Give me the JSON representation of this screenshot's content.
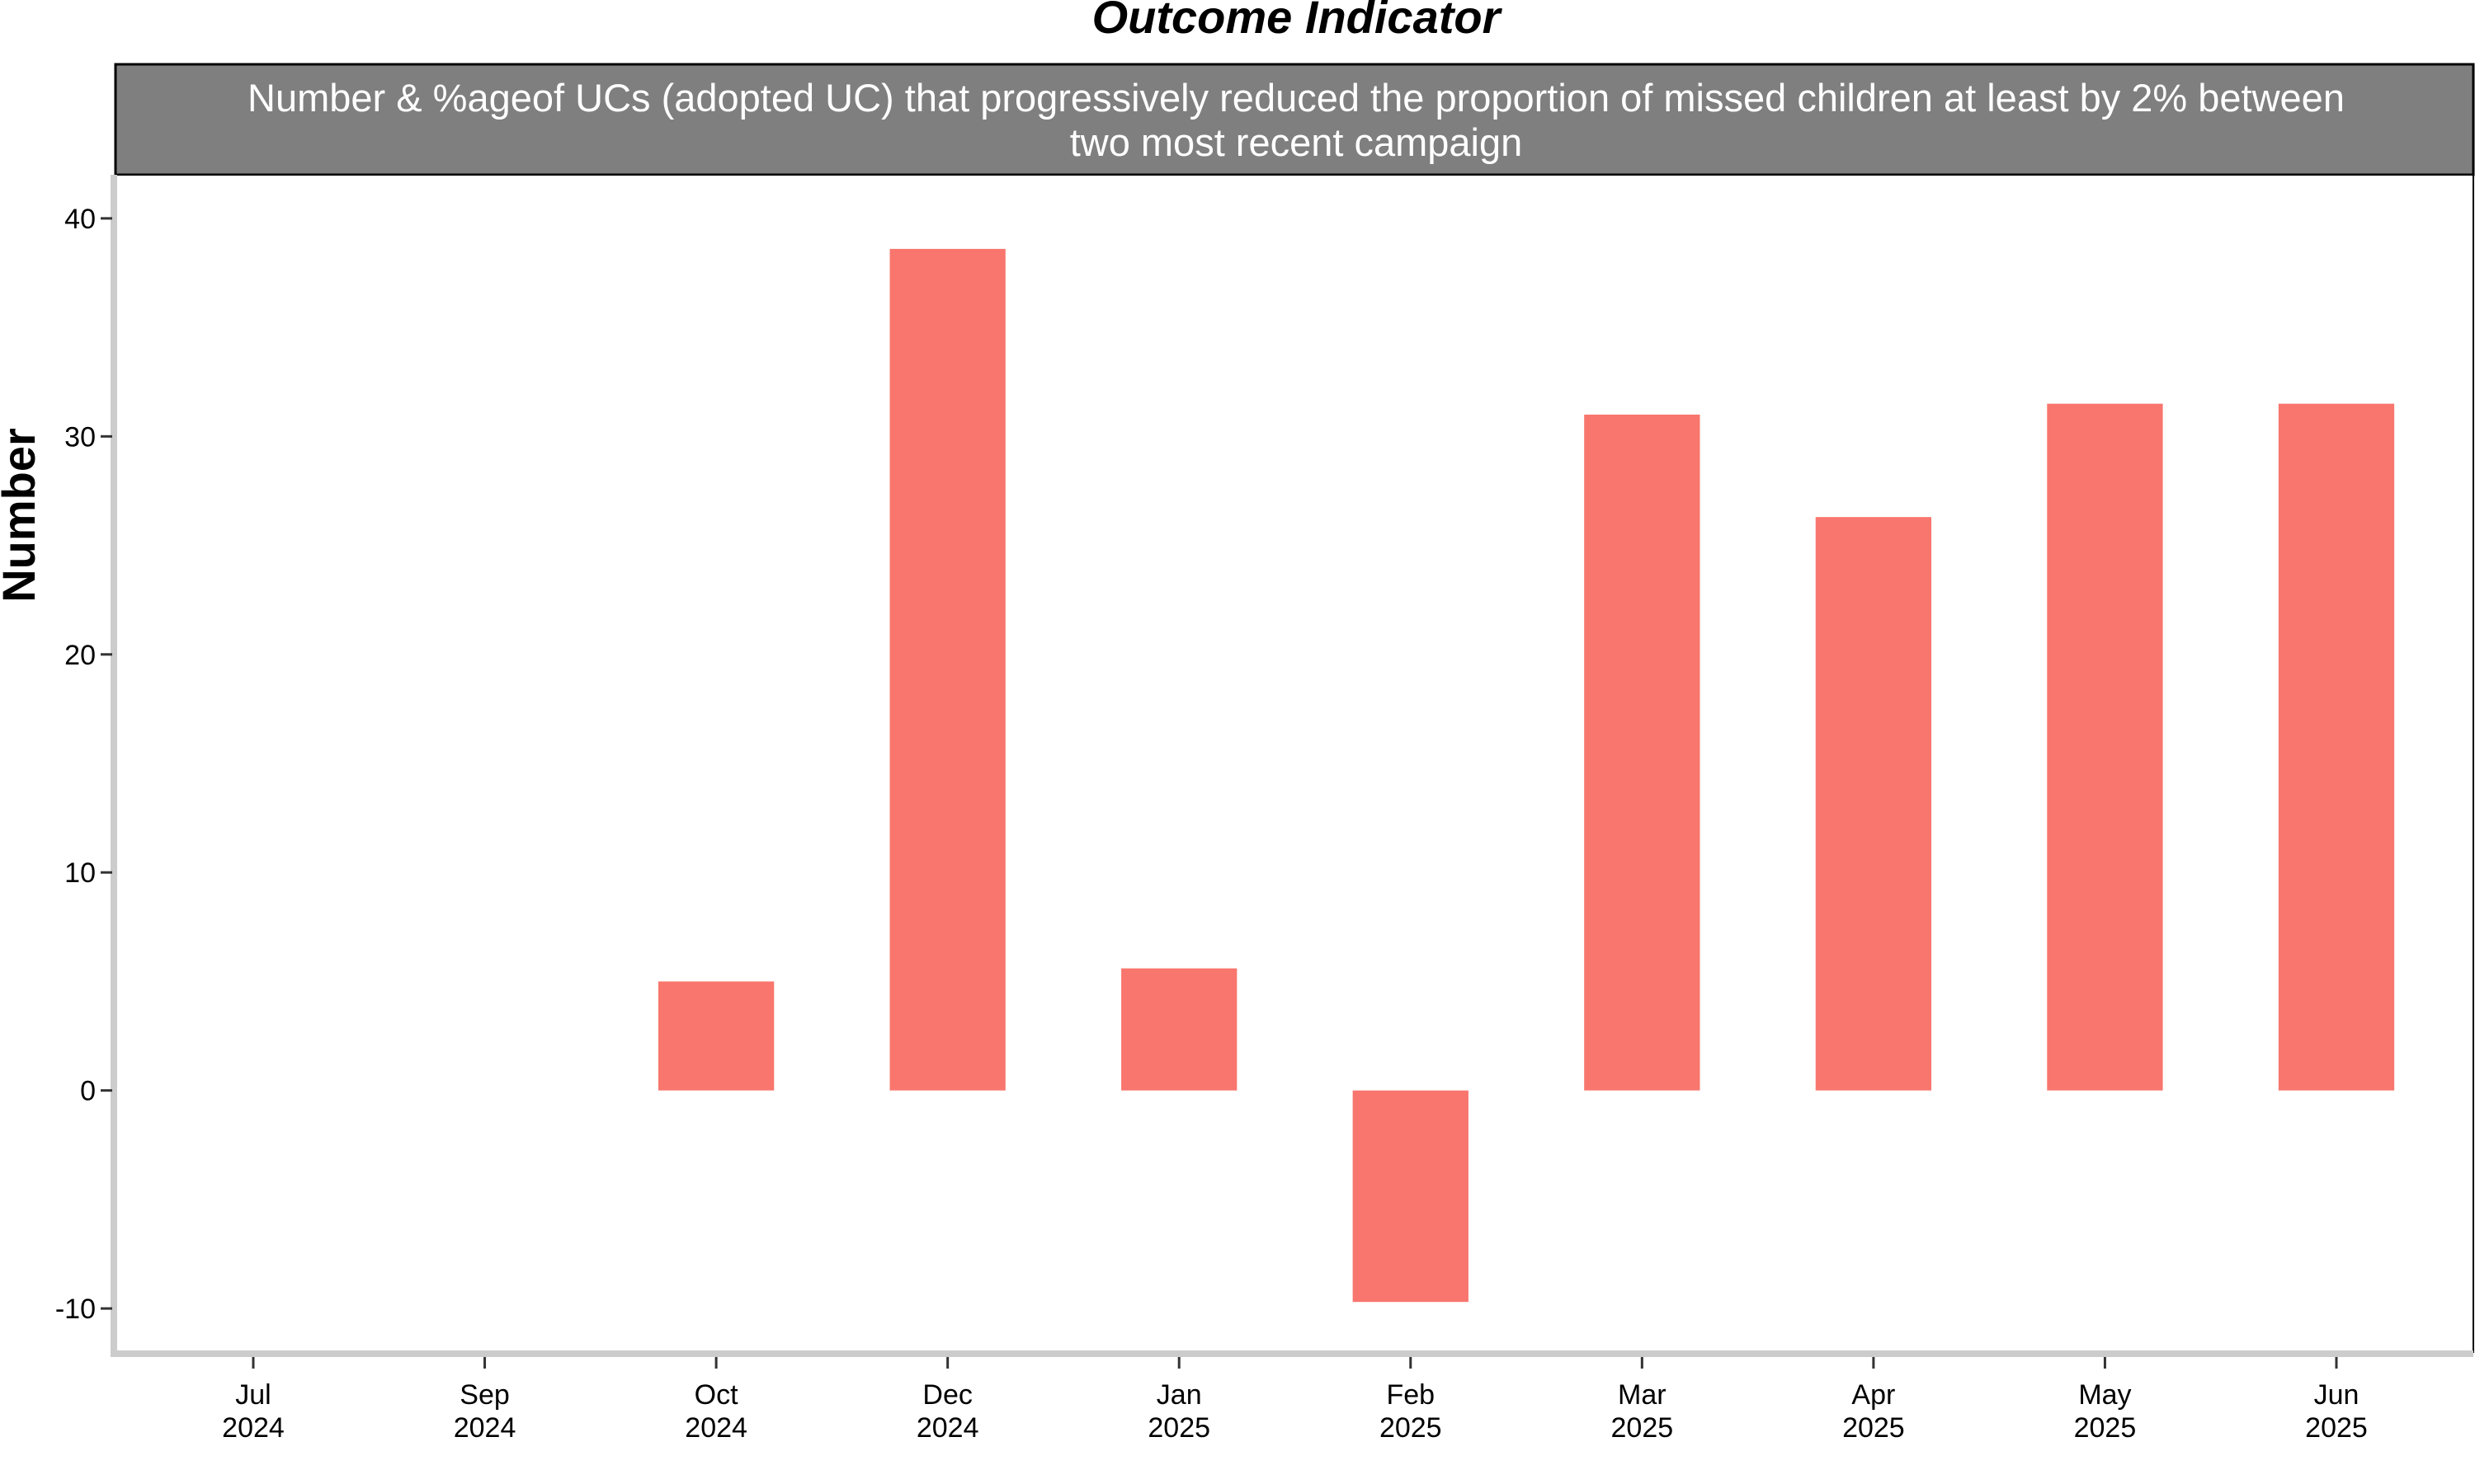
{
  "chart_data": {
    "type": "bar",
    "title": "Outcome Indicator",
    "facet_label": [
      "Number & %ageof UCs (adopted UC) that progressively reduced the proportion of missed children at least by 2% between",
      "two most recent campaign"
    ],
    "ylabel": "Number",
    "xlabel": "",
    "categories": [
      "2024-07",
      "2024-09",
      "2024-10",
      "2024-12",
      "2025-01",
      "2025-02",
      "2025-03",
      "2025-04",
      "2025-05",
      "2025-06"
    ],
    "x_tick_labels": [
      {
        "month": "Jul",
        "year": "2024"
      },
      {
        "month": "Sep",
        "year": "2024"
      },
      {
        "month": "Oct",
        "year": "2024"
      },
      {
        "month": "Dec",
        "year": "2024"
      },
      {
        "month": "Jan",
        "year": "2025"
      },
      {
        "month": "Feb",
        "year": "2025"
      },
      {
        "month": "Mar",
        "year": "2025"
      },
      {
        "month": "Apr",
        "year": "2025"
      },
      {
        "month": "May",
        "year": "2025"
      },
      {
        "month": "Jun",
        "year": "2025"
      }
    ],
    "values": [
      null,
      null,
      5.0,
      38.6,
      5.6,
      -9.7,
      31.0,
      26.3,
      31.5,
      31.5
    ],
    "ylim": [
      -12,
      42
    ],
    "yticks": [
      -10,
      0,
      10,
      20,
      30,
      40
    ],
    "ytick_labels": [
      "-10",
      "0",
      "10",
      "20",
      "30",
      "40"
    ],
    "bar_color": "#F8766D",
    "facet_strip_color": "#7F7F7F",
    "axis_color": "#CCCCCC",
    "grid": false,
    "legend": "none"
  }
}
